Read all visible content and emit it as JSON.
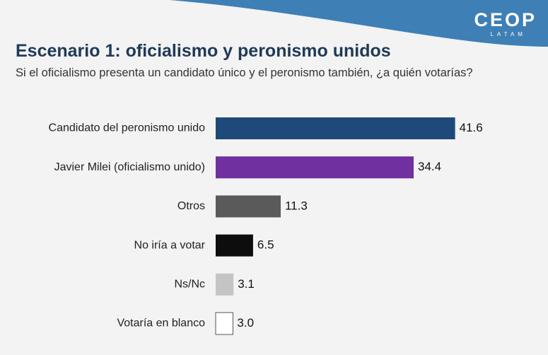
{
  "logo": {
    "main": "CEOP",
    "sub": "LATAM"
  },
  "colors": {
    "header_band": "#3e7fb5",
    "title": "#1f3a58"
  },
  "chart_data": {
    "type": "bar",
    "orientation": "horizontal",
    "title": "Escenario 1: oficialismo y peronismo unidos",
    "subtitle": "Si el oficialismo presenta un candidato único y el peronismo también, ¿a quién votarías?",
    "categories": [
      "Candidato del peronismo unido",
      "Javier Milei (oficialismo unido)",
      "Otros",
      "No iría a votar",
      "Ns/Nc",
      "Votaría en blanco"
    ],
    "values": [
      41.6,
      34.4,
      11.3,
      6.5,
      3.1,
      3.0
    ],
    "colors": [
      "#1e4a7a",
      "#7030a0",
      "#5a5a5a",
      "#0d0d0d",
      "#c4c4c4",
      "#ffffff"
    ],
    "grid": false,
    "legend": "none"
  }
}
